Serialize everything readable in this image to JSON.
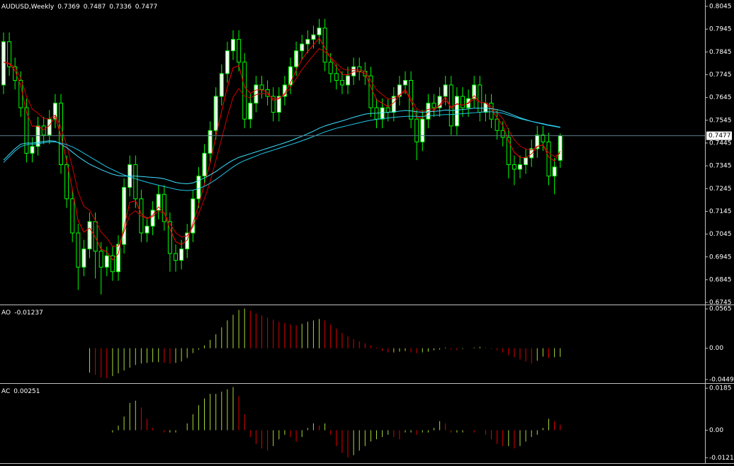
{
  "chart_data": [
    {
      "type": "candlestick",
      "title": "AUDUSD,Weekly",
      "open": [
        0.77,
        0.789,
        0.778,
        0.772,
        0.76,
        0.74,
        0.743,
        0.752,
        0.748,
        0.755,
        0.762,
        0.735,
        0.72,
        0.705,
        0.69,
        0.698,
        0.71,
        0.697,
        0.69,
        0.695,
        0.688,
        0.7,
        0.725,
        0.735,
        0.72,
        0.705,
        0.708,
        0.715,
        0.722,
        0.71,
        0.696,
        0.693,
        0.698,
        0.705,
        0.72,
        0.73,
        0.74,
        0.75,
        0.765,
        0.775,
        0.785,
        0.79,
        0.78,
        0.755,
        0.762,
        0.77,
        0.768,
        0.765,
        0.758,
        0.765,
        0.77,
        0.778,
        0.785,
        0.788,
        0.79,
        0.792,
        0.795,
        0.78,
        0.775,
        0.772,
        0.77,
        0.774,
        0.778,
        0.776,
        0.774,
        0.76,
        0.755,
        0.76,
        0.758,
        0.765,
        0.77,
        0.772,
        0.755,
        0.745,
        0.755,
        0.762,
        0.76,
        0.765,
        0.77,
        0.752,
        0.765,
        0.76,
        0.764,
        0.77,
        0.758,
        0.762,
        0.755,
        0.75,
        0.747,
        0.735,
        0.733,
        0.735,
        0.738,
        0.742,
        0.748,
        0.745,
        0.73,
        0.7369
      ],
      "high": [
        0.793,
        0.793,
        0.782,
        0.776,
        0.764,
        0.747,
        0.756,
        0.756,
        0.759,
        0.766,
        0.766,
        0.739,
        0.724,
        0.709,
        0.702,
        0.714,
        0.714,
        0.701,
        0.699,
        0.699,
        0.704,
        0.729,
        0.739,
        0.739,
        0.724,
        0.712,
        0.719,
        0.726,
        0.726,
        0.714,
        0.7,
        0.702,
        0.709,
        0.724,
        0.734,
        0.744,
        0.754,
        0.769,
        0.779,
        0.789,
        0.794,
        0.794,
        0.784,
        0.766,
        0.774,
        0.774,
        0.772,
        0.769,
        0.769,
        0.774,
        0.782,
        0.789,
        0.792,
        0.794,
        0.796,
        0.799,
        0.799,
        0.784,
        0.779,
        0.776,
        0.778,
        0.782,
        0.782,
        0.78,
        0.778,
        0.764,
        0.764,
        0.764,
        0.769,
        0.774,
        0.776,
        0.776,
        0.759,
        0.759,
        0.766,
        0.766,
        0.769,
        0.774,
        0.774,
        0.769,
        0.769,
        0.768,
        0.774,
        0.774,
        0.766,
        0.766,
        0.759,
        0.754,
        0.751,
        0.739,
        0.739,
        0.742,
        0.746,
        0.752,
        0.752,
        0.749,
        0.738,
        0.7487
      ],
      "low": [
        0.766,
        0.774,
        0.768,
        0.756,
        0.736,
        0.736,
        0.739,
        0.744,
        0.744,
        0.751,
        0.731,
        0.716,
        0.701,
        0.68,
        0.686,
        0.694,
        0.685,
        0.678,
        0.686,
        0.684,
        0.684,
        0.696,
        0.721,
        0.716,
        0.701,
        0.701,
        0.704,
        0.711,
        0.706,
        0.688,
        0.688,
        0.689,
        0.694,
        0.701,
        0.716,
        0.726,
        0.736,
        0.746,
        0.761,
        0.771,
        0.781,
        0.776,
        0.751,
        0.751,
        0.758,
        0.764,
        0.761,
        0.754,
        0.754,
        0.761,
        0.766,
        0.774,
        0.781,
        0.784,
        0.786,
        0.788,
        0.776,
        0.771,
        0.768,
        0.766,
        0.766,
        0.77,
        0.772,
        0.77,
        0.756,
        0.751,
        0.751,
        0.754,
        0.754,
        0.761,
        0.766,
        0.751,
        0.737,
        0.741,
        0.751,
        0.756,
        0.756,
        0.761,
        0.748,
        0.748,
        0.756,
        0.756,
        0.76,
        0.754,
        0.754,
        0.751,
        0.746,
        0.743,
        0.729,
        0.726,
        0.729,
        0.731,
        0.734,
        0.738,
        0.741,
        0.726,
        0.722,
        0.7336
      ],
      "close": [
        0.789,
        0.778,
        0.772,
        0.76,
        0.74,
        0.743,
        0.752,
        0.748,
        0.755,
        0.762,
        0.735,
        0.72,
        0.705,
        0.69,
        0.698,
        0.71,
        0.697,
        0.69,
        0.695,
        0.688,
        0.7,
        0.725,
        0.735,
        0.72,
        0.705,
        0.708,
        0.715,
        0.722,
        0.71,
        0.696,
        0.693,
        0.698,
        0.705,
        0.72,
        0.73,
        0.74,
        0.75,
        0.765,
        0.775,
        0.785,
        0.79,
        0.78,
        0.755,
        0.762,
        0.77,
        0.768,
        0.765,
        0.758,
        0.765,
        0.77,
        0.778,
        0.785,
        0.788,
        0.79,
        0.792,
        0.795,
        0.78,
        0.775,
        0.772,
        0.77,
        0.774,
        0.778,
        0.776,
        0.774,
        0.76,
        0.755,
        0.76,
        0.758,
        0.765,
        0.77,
        0.772,
        0.755,
        0.745,
        0.755,
        0.762,
        0.76,
        0.765,
        0.77,
        0.752,
        0.765,
        0.76,
        0.764,
        0.77,
        0.758,
        0.762,
        0.755,
        0.75,
        0.747,
        0.735,
        0.733,
        0.735,
        0.738,
        0.742,
        0.748,
        0.745,
        0.73,
        0.734,
        0.7477
      ],
      "lines": [
        {
          "color": "#ff0000",
          "values": [
            0.78,
            0.7792,
            0.7763,
            0.7698,
            0.7579,
            0.7519,
            0.7519,
            0.7503,
            0.7522,
            0.7561,
            0.7477,
            0.7366,
            0.724,
            0.7104,
            0.7054,
            0.7072,
            0.7031,
            0.6979,
            0.6967,
            0.6932,
            0.6959,
            0.7075,
            0.7185,
            0.7191,
            0.7135,
            0.7113,
            0.7128,
            0.7165,
            0.7139,
            0.7067,
            0.7012,
            0.6999,
            0.7019,
            0.7091,
            0.7175,
            0.7265,
            0.7359,
            0.7475,
            0.7585,
            0.7691,
            0.7775,
            0.7785,
            0.7691,
            0.7663,
            0.7678,
            0.7679,
            0.7667,
            0.7632,
            0.7639,
            0.7663,
            0.771,
            0.7766,
            0.7812,
            0.7847,
            0.7876,
            0.7906,
            0.7864,
            0.7818,
            0.7779,
            0.7747,
            0.7744,
            0.7758,
            0.7759,
            0.7751,
            0.7691,
            0.7634,
            0.762,
            0.7604,
            0.7622,
            0.7653,
            0.768,
            0.7628,
            0.7557,
            0.7554,
            0.758,
            0.7588,
            0.7613,
            0.7648,
            0.7597,
            0.7618,
            0.7611,
            0.7622,
            0.7653,
            0.7624,
            0.7622,
            0.7593,
            0.7556,
            0.7522,
            0.7453,
            0.7404,
            0.7382,
            0.7381,
            0.7397,
            0.743,
            0.7438,
            0.7383,
            0.7366,
            0.741
          ]
        },
        {
          "color": "#d00000",
          "values": [
            0.78,
            0.7795,
            0.7776,
            0.7732,
            0.7649,
            0.7594,
            0.7576,
            0.7552,
            0.7551,
            0.7568,
            0.7514,
            0.7436,
            0.7339,
            0.7229,
            0.7167,
            0.715,
            0.7105,
            0.7054,
            0.7028,
            0.6991,
            0.6993,
            0.7057,
            0.713,
            0.7148,
            0.7124,
            0.7113,
            0.7122,
            0.7147,
            0.7135,
            0.7091,
            0.7051,
            0.7033,
            0.7037,
            0.7078,
            0.7134,
            0.72,
            0.7275,
            0.7369,
            0.7464,
            0.7561,
            0.7646,
            0.7684,
            0.7651,
            0.7643,
            0.7657,
            0.7663,
            0.766,
            0.764,
            0.7643,
            0.7657,
            0.7688,
            0.7729,
            0.7767,
            0.78,
            0.783,
            0.786,
            0.7845,
            0.7821,
            0.7796,
            0.7772,
            0.7764,
            0.7768,
            0.7766,
            0.776,
            0.772,
            0.7678,
            0.7658,
            0.7638,
            0.7641,
            0.7656,
            0.7672,
            0.7642,
            0.7594,
            0.7583,
            0.7593,
            0.7595,
            0.7609,
            0.7632,
            0.7604,
            0.7616,
            0.7612,
            0.7619,
            0.7639,
            0.7624,
            0.7623,
            0.7605,
            0.7579,
            0.7552,
            0.7502,
            0.7459,
            0.7432,
            0.7419,
            0.7414,
            0.7431,
            0.7436,
            0.7402,
            0.7386,
            0.74
          ]
        },
        {
          "color": "#40e0ff",
          "values": [
            0.737,
            0.7395,
            0.742,
            0.744,
            0.7445,
            0.7445,
            0.7448,
            0.7452,
            0.7455,
            0.7453,
            0.744,
            0.7425,
            0.7405,
            0.7385,
            0.7368,
            0.7352,
            0.734,
            0.7328,
            0.7318,
            0.7308,
            0.7302,
            0.73,
            0.73,
            0.73,
            0.7298,
            0.7296,
            0.7294,
            0.7292,
            0.7288,
            0.728,
            0.7272,
            0.7268,
            0.7266,
            0.727,
            0.728,
            0.7292,
            0.7305,
            0.732,
            0.7338,
            0.7355,
            0.737,
            0.7382,
            0.739,
            0.7398,
            0.7406,
            0.7414,
            0.7422,
            0.743,
            0.7438,
            0.7446,
            0.7455,
            0.7465,
            0.7475,
            0.7486,
            0.7497,
            0.751,
            0.752,
            0.7528,
            0.7535,
            0.7542,
            0.755,
            0.7558,
            0.7565,
            0.7572,
            0.7575,
            0.7576,
            0.7578,
            0.758,
            0.7582,
            0.7585,
            0.7588,
            0.7586,
            0.7582,
            0.758,
            0.7582,
            0.7584,
            0.7586,
            0.759,
            0.7588,
            0.759,
            0.7592,
            0.7595,
            0.7598,
            0.7598,
            0.7598,
            0.7596,
            0.7592,
            0.7585,
            0.7576,
            0.7566,
            0.7556,
            0.7548,
            0.754,
            0.7535,
            0.753,
            0.7524,
            0.752,
            0.7515
          ]
        },
        {
          "color": "#20c8e8",
          "values": [
            0.736,
            0.7385,
            0.741,
            0.743,
            0.7438,
            0.744,
            0.7442,
            0.7446,
            0.745,
            0.745,
            0.7445,
            0.7438,
            0.7428,
            0.7415,
            0.74,
            0.7385,
            0.737,
            0.7355,
            0.734,
            0.7328,
            0.7316,
            0.7305,
            0.7296,
            0.7288,
            0.728,
            0.7273,
            0.7266,
            0.726,
            0.7254,
            0.7248,
            0.7242,
            0.7238,
            0.7236,
            0.7238,
            0.7245,
            0.7255,
            0.7268,
            0.7285,
            0.7303,
            0.7322,
            0.734,
            0.7356,
            0.7368,
            0.7378,
            0.7388,
            0.7398,
            0.7406,
            0.7414,
            0.7422,
            0.743,
            0.7438,
            0.7446,
            0.7455,
            0.7464,
            0.7474,
            0.7484,
            0.7494,
            0.7502,
            0.751,
            0.7516,
            0.7522,
            0.7528,
            0.7534,
            0.754,
            0.7545,
            0.7549,
            0.7552,
            0.7555,
            0.7558,
            0.756,
            0.7562,
            0.7563,
            0.7562,
            0.7562,
            0.7564,
            0.7566,
            0.7568,
            0.757,
            0.757,
            0.7572,
            0.7574,
            0.7576,
            0.7578,
            0.758,
            0.7582,
            0.7582,
            0.758,
            0.7576,
            0.7568,
            0.756,
            0.7552,
            0.7546,
            0.754,
            0.7534,
            0.7528,
            0.7522,
            0.7518,
            0.7513
          ]
        }
      ],
      "ylim": [
        0.6739,
        0.8073
      ],
      "yticks": [
        0.8045,
        0.7945,
        0.7845,
        0.7745,
        0.7645,
        0.7545,
        0.7445,
        0.7345,
        0.7245,
        0.7145,
        0.7045,
        0.6945,
        0.6845,
        0.6745
      ],
      "colors": {
        "up": "#ffffff",
        "down": "#000000",
        "wick": "#00ff00",
        "last_price": "#5a7a8a"
      }
    },
    {
      "type": "histogram",
      "title": "AO",
      "values": [
        null,
        null,
        null,
        null,
        null,
        null,
        null,
        null,
        null,
        null,
        null,
        null,
        null,
        null,
        null,
        -0.035,
        -0.038,
        -0.042,
        -0.043,
        -0.04,
        -0.036,
        -0.032,
        -0.028,
        -0.024,
        -0.022,
        -0.021,
        -0.02,
        -0.02,
        -0.021,
        -0.022,
        -0.021,
        -0.019,
        -0.014,
        -0.007,
        -0.002,
        0.004,
        0.012,
        0.02,
        0.03,
        0.04,
        0.048,
        0.055,
        0.057,
        0.054,
        0.05,
        0.047,
        0.044,
        0.041,
        0.038,
        0.036,
        0.034,
        0.033,
        0.035,
        0.038,
        0.04,
        0.042,
        0.04,
        0.034,
        0.028,
        0.022,
        0.017,
        0.013,
        0.01,
        0.007,
        0.004,
        0.001,
        -0.004,
        -0.006,
        -0.006,
        -0.005,
        -0.004,
        -0.006,
        -0.007,
        -0.006,
        -0.005,
        -0.003,
        -0.002,
        0.001,
        -0.002,
        -0.003,
        -0.001,
        0.0,
        0.001,
        0.002,
        0.001,
        -0.001,
        -0.003,
        -0.006,
        -0.01,
        -0.013,
        -0.016,
        -0.019,
        -0.022,
        -0.018,
        -0.012,
        -0.014,
        -0.013,
        -0.01237
      ],
      "ylim": [
        -0.0491,
        0.0607
      ],
      "yticks": [
        0.0565,
        {
          "value": 0,
          "label": "0.00"
        },
        -0.0449
      ],
      "colors": {
        "up": "#a8d838",
        "down": "#e00000"
      }
    },
    {
      "type": "histogram",
      "title": "AC",
      "values": [
        null,
        null,
        null,
        null,
        null,
        null,
        null,
        null,
        null,
        null,
        null,
        null,
        null,
        null,
        null,
        null,
        null,
        null,
        null,
        -0.001,
        0.002,
        0.006,
        0.012,
        0.013,
        0.01,
        0.005,
        0.001,
        0.0,
        -0.001,
        -0.001,
        -0.001,
        0.0,
        0.003,
        0.007,
        0.011,
        0.014,
        0.016,
        0.016,
        0.017,
        0.018,
        0.019,
        0.015,
        0.007,
        -0.003,
        -0.006,
        -0.008,
        -0.009,
        -0.007,
        -0.004,
        -0.002,
        -0.003,
        -0.005,
        -0.003,
        0.001,
        0.003,
        0.002,
        0.003,
        -0.002,
        -0.007,
        -0.01,
        -0.012,
        -0.011,
        -0.009,
        -0.007,
        -0.005,
        -0.004,
        -0.003,
        -0.002,
        -0.003,
        -0.004,
        -0.001,
        -0.001,
        -0.002,
        -0.001,
        -0.001,
        0.001,
        0.004,
        0.003,
        -0.001,
        -0.001,
        -0.001,
        0.0,
        -0.001,
        0.0,
        -0.002,
        -0.004,
        -0.006,
        -0.007,
        -0.007,
        -0.008,
        -0.007,
        -0.005,
        -0.003,
        -0.002,
        0.001,
        0.005,
        0.004,
        0.00251
      ],
      "ylim": [
        -0.0142,
        0.0201
      ],
      "yticks": [
        0.0185,
        {
          "value": 0,
          "label": "0.00"
        },
        -0.0121
      ],
      "colors": {
        "up": "#a8d838",
        "down": "#e00000"
      }
    }
  ]
}
